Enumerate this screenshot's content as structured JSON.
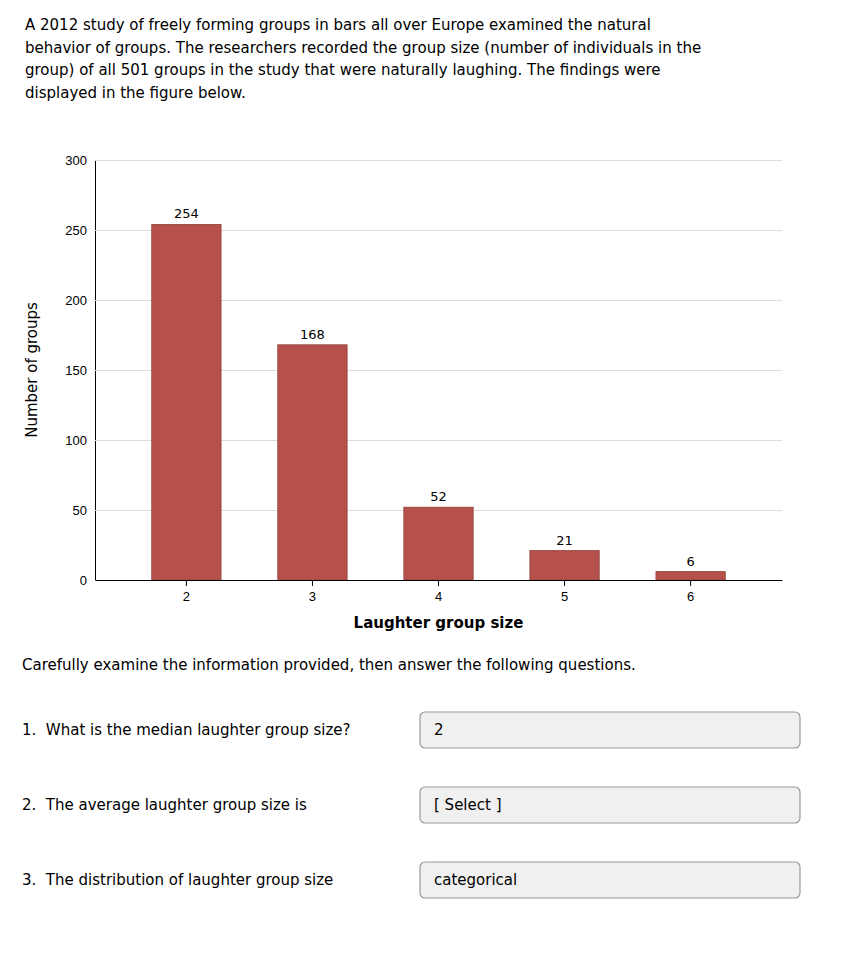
{
  "chart_data": {
    "type": "bar",
    "title": "A 2012 study of freely forming groups in bars all over Europe examined the natural\nbehavior of groups. The researchers recorded the group size (number of individuals in the\ngroup) of all 501 groups in the study that were naturally laughing. The findings were\ndisplayed in the figure below.",
    "categories": [
      2,
      3,
      4,
      5,
      6
    ],
    "values": [
      254,
      168,
      52,
      21,
      6
    ],
    "color": "#b5514a",
    "xlabel": "Laughter group size",
    "ylabel": "Number of groups",
    "ylim": [
      0,
      300
    ],
    "yticks": [
      0,
      50,
      100,
      150,
      200,
      250,
      300
    ],
    "grid": true,
    "data_labels": true,
    "annotations": [
      "Carefully examine the information provided, then answer the following questions.",
      "1.  What is the median laughter group size?",
      "2",
      "2.  The average laughter group size is",
      "[ Select ]",
      "3.  The distribution of laughter group size",
      "categorical"
    ]
  }
}
